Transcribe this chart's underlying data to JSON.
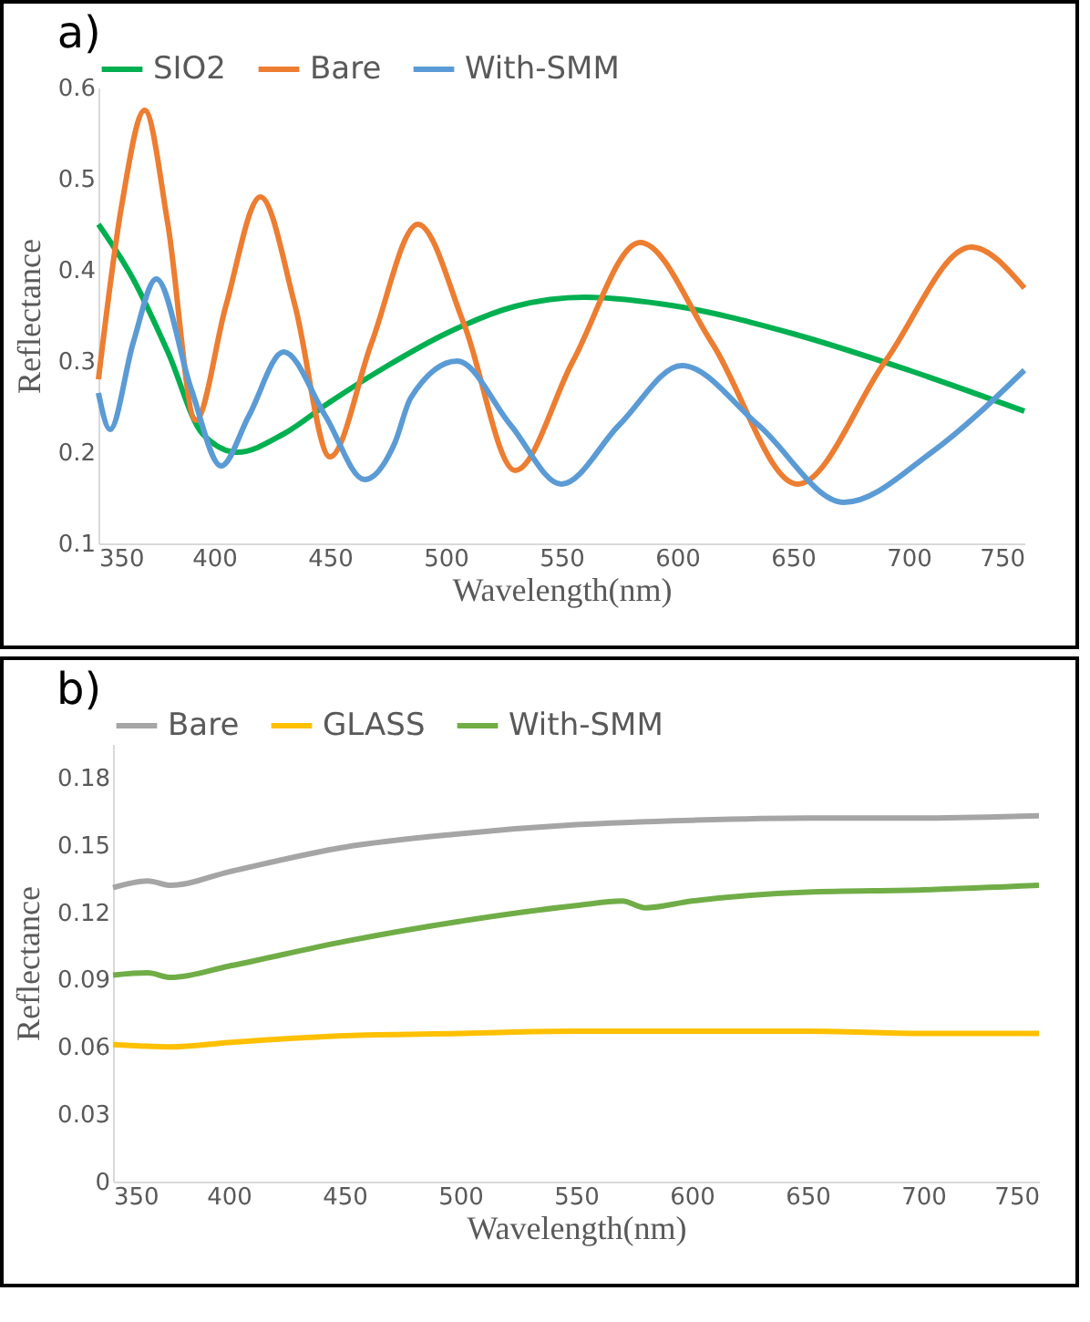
{
  "chart_data": [
    {
      "type": "line",
      "title": "a)",
      "xlabel": "Wavelength(nm)",
      "ylabel": "Reflectance",
      "xlim": [
        350,
        750
      ],
      "xticks": [
        350,
        400,
        450,
        500,
        550,
        600,
        650,
        700,
        750
      ],
      "ylim": [
        0.1,
        0.6
      ],
      "yticks": [
        0.1,
        0.2,
        0.3,
        0.4,
        0.5,
        0.6
      ],
      "legend": "top",
      "grid": false,
      "series": [
        {
          "name": "SIO2",
          "color": "#00b050",
          "x": [
            350,
            365,
            380,
            395,
            410,
            430,
            450,
            475,
            500,
            530,
            560,
            600,
            650,
            700,
            750
          ],
          "values": [
            0.45,
            0.39,
            0.31,
            0.22,
            0.2,
            0.22,
            0.255,
            0.295,
            0.33,
            0.36,
            0.37,
            0.36,
            0.33,
            0.29,
            0.245
          ]
        },
        {
          "name": "Bare",
          "color": "#ed7d31",
          "x": [
            350,
            360,
            370,
            380,
            392,
            405,
            420,
            435,
            450,
            468,
            488,
            508,
            530,
            555,
            584,
            615,
            652,
            690,
            727,
            750
          ],
          "values": [
            0.28,
            0.47,
            0.575,
            0.45,
            0.235,
            0.36,
            0.48,
            0.36,
            0.195,
            0.32,
            0.45,
            0.34,
            0.18,
            0.3,
            0.43,
            0.32,
            0.165,
            0.3,
            0.425,
            0.38
          ]
        },
        {
          "name": "With-SMM",
          "color": "#5b9bd5",
          "x": [
            350,
            355,
            365,
            375,
            390,
            403,
            415,
            430,
            448,
            465,
            478,
            485,
            505,
            528,
            550,
            575,
            602,
            635,
            672,
            710,
            750
          ],
          "values": [
            0.265,
            0.225,
            0.32,
            0.39,
            0.27,
            0.185,
            0.24,
            0.31,
            0.24,
            0.17,
            0.21,
            0.26,
            0.3,
            0.23,
            0.165,
            0.23,
            0.295,
            0.23,
            0.145,
            0.2,
            0.29
          ]
        }
      ]
    },
    {
      "type": "line",
      "title": "b)",
      "xlabel": "Wavelength(nm)",
      "ylabel": "Reflectance",
      "xlim": [
        350,
        750
      ],
      "xticks": [
        350,
        400,
        450,
        500,
        550,
        600,
        650,
        700,
        750
      ],
      "ylim": [
        0,
        0.195
      ],
      "yticks": [
        0,
        0.03,
        0.06,
        0.09,
        0.12,
        0.15,
        0.18
      ],
      "legend": "top",
      "grid": false,
      "series": [
        {
          "name": "Bare",
          "color": "#a5a5a5",
          "x": [
            350,
            365,
            375,
            400,
            450,
            500,
            550,
            600,
            650,
            700,
            750
          ],
          "values": [
            0.131,
            0.134,
            0.132,
            0.138,
            0.149,
            0.155,
            0.159,
            0.161,
            0.162,
            0.162,
            0.163
          ]
        },
        {
          "name": "GLASS",
          "color": "#ffc000",
          "x": [
            350,
            375,
            400,
            450,
            500,
            550,
            600,
            650,
            700,
            750
          ],
          "values": [
            0.061,
            0.06,
            0.062,
            0.065,
            0.066,
            0.067,
            0.067,
            0.067,
            0.066,
            0.066
          ]
        },
        {
          "name": "With-SMM",
          "color": "#70ad47",
          "x": [
            350,
            365,
            375,
            400,
            450,
            500,
            550,
            570,
            580,
            600,
            650,
            700,
            750
          ],
          "values": [
            0.092,
            0.093,
            0.091,
            0.096,
            0.107,
            0.116,
            0.123,
            0.125,
            0.122,
            0.125,
            0.129,
            0.13,
            0.132
          ]
        }
      ]
    }
  ]
}
